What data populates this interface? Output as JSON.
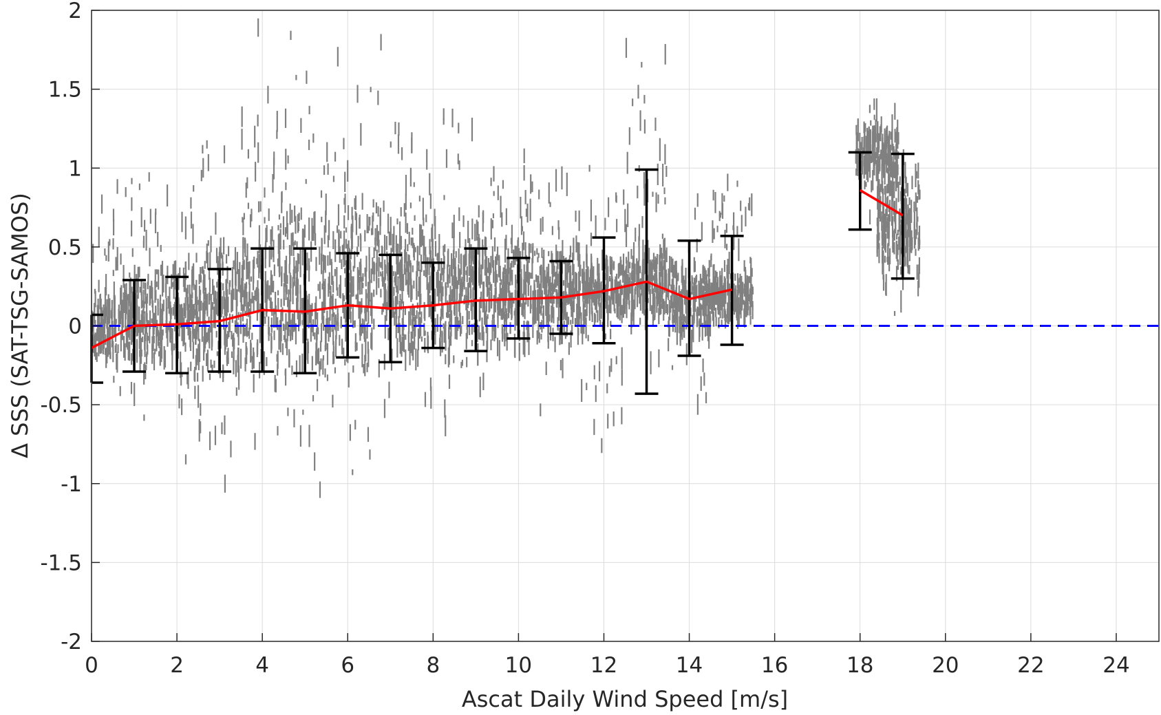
{
  "chart_data": {
    "type": "scatter",
    "xlabel": "Ascat Daily Wind Speed [m/s]",
    "ylabel": "Δ SSS (SAT-TSG-SAMOS)",
    "xlim": [
      0,
      25
    ],
    "ylim": [
      -2,
      2
    ],
    "xticks": [
      0,
      2,
      4,
      6,
      8,
      10,
      12,
      14,
      16,
      18,
      20,
      22,
      24
    ],
    "yticks": [
      -2,
      -1.5,
      -1,
      -0.5,
      0,
      0.5,
      1,
      1.5,
      2
    ],
    "grid": true,
    "reference_line": {
      "y": 0,
      "color": "#0000ff",
      "style": "dashed"
    },
    "scatter_color": "#808080",
    "mean_color": "#ff0000",
    "errorbar_color": "#000000",
    "scatter_bins": [
      {
        "x": 0,
        "lo": -0.55,
        "hi": 0.85,
        "core_lo": -0.25,
        "core_hi": 0.2
      },
      {
        "x": 1,
        "lo": -0.65,
        "hi": 1.1,
        "core_lo": -0.3,
        "core_hi": 0.4
      },
      {
        "x": 2,
        "lo": -1.2,
        "hi": 1.05,
        "core_lo": -0.35,
        "core_hi": 0.45
      },
      {
        "x": 3,
        "lo": -1.3,
        "hi": 1.3,
        "core_lo": -0.4,
        "core_hi": 0.6
      },
      {
        "x": 4,
        "lo": -1.05,
        "hi": 2.0,
        "core_lo": -0.4,
        "core_hi": 0.75
      },
      {
        "x": 5,
        "lo": -1.1,
        "hi": 2.0,
        "core_lo": -0.4,
        "core_hi": 0.8
      },
      {
        "x": 6,
        "lo": -1.2,
        "hi": 2.0,
        "core_lo": -0.35,
        "core_hi": 0.85
      },
      {
        "x": 7,
        "lo": -0.85,
        "hi": 2.0,
        "core_lo": -0.3,
        "core_hi": 0.85
      },
      {
        "x": 8,
        "lo": -0.9,
        "hi": 1.85,
        "core_lo": -0.3,
        "core_hi": 0.75
      },
      {
        "x": 9,
        "lo": -0.85,
        "hi": 1.9,
        "core_lo": -0.25,
        "core_hi": 0.7
      },
      {
        "x": 10,
        "lo": -0.55,
        "hi": 1.3,
        "core_lo": -0.2,
        "core_hi": 0.6
      },
      {
        "x": 11,
        "lo": -0.65,
        "hi": 1.05,
        "core_lo": -0.1,
        "core_hi": 0.5
      },
      {
        "x": 12,
        "lo": -0.85,
        "hi": 1.1,
        "core_lo": 0.0,
        "core_hi": 0.45
      },
      {
        "x": 13,
        "lo": -0.45,
        "hi": 2.0,
        "core_lo": 0.0,
        "core_hi": 0.55
      },
      {
        "x": 14,
        "lo": -0.6,
        "hi": 1.0,
        "core_lo": -0.1,
        "core_hi": 0.45
      },
      {
        "x": 15,
        "lo": -0.1,
        "hi": 1.05,
        "core_lo": 0.0,
        "core_hi": 0.4
      },
      {
        "x": 18.4,
        "lo": 0.6,
        "hi": 1.45,
        "core_lo": 0.9,
        "core_hi": 1.3
      },
      {
        "x": 18.9,
        "lo": 0.0,
        "hi": 1.15,
        "core_lo": 0.3,
        "core_hi": 1.0
      }
    ],
    "series": [
      {
        "x": [
          0,
          1,
          2,
          3,
          4,
          5,
          6,
          7,
          8,
          9,
          10,
          11,
          12,
          13,
          14,
          15
        ],
        "mean": [
          -0.14,
          0.0,
          0.01,
          0.03,
          0.1,
          0.09,
          0.13,
          0.11,
          0.13,
          0.16,
          0.17,
          0.18,
          0.22,
          0.28,
          0.17,
          0.23
        ],
        "err_lo": [
          -0.36,
          -0.29,
          -0.3,
          -0.29,
          -0.29,
          -0.3,
          -0.2,
          -0.23,
          -0.14,
          -0.16,
          -0.08,
          -0.05,
          -0.11,
          -0.43,
          -0.19,
          -0.12
        ],
        "err_hi": [
          0.07,
          0.29,
          0.31,
          0.36,
          0.49,
          0.49,
          0.46,
          0.45,
          0.4,
          0.49,
          0.43,
          0.41,
          0.56,
          0.99,
          0.54,
          0.57
        ]
      },
      {
        "x": [
          18,
          19
        ],
        "mean": [
          0.86,
          0.7
        ],
        "err_lo": [
          0.61,
          0.3
        ],
        "err_hi": [
          1.1,
          1.09
        ]
      }
    ]
  }
}
